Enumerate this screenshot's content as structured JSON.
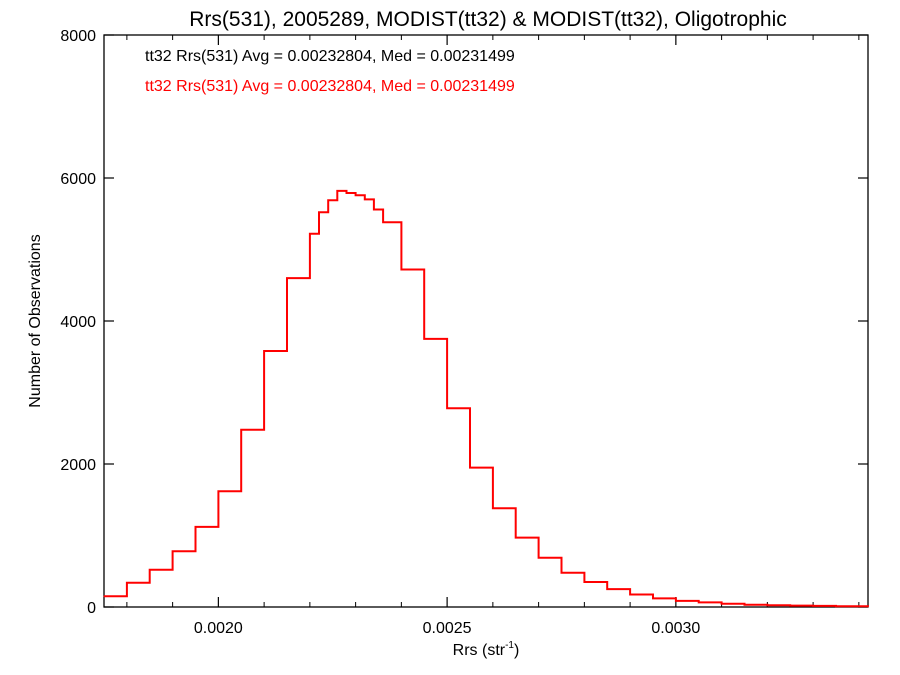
{
  "chart_data": {
    "type": "line",
    "step": true,
    "title": "Rrs(531), 2005289, MODIST(tt32) & MODIST(tt32), Oligotrophic",
    "xlabel": "Rrs (str",
    "xlabel_sup": "-1",
    "xlabel_close": ")",
    "ylabel": "Number of Observations",
    "xlim": [
      0.00175,
      0.00342
    ],
    "ylim": [
      0,
      8000
    ],
    "x_ticks": [
      {
        "value": 0.002,
        "label": "0.0020"
      },
      {
        "value": 0.0025,
        "label": "0.0025"
      },
      {
        "value": 0.003,
        "label": "0.0030"
      }
    ],
    "y_ticks": [
      {
        "value": 0,
        "label": "0"
      },
      {
        "value": 2000,
        "label": "2000"
      },
      {
        "value": 4000,
        "label": "4000"
      },
      {
        "value": 6000,
        "label": "6000"
      },
      {
        "value": 8000,
        "label": "8000"
      }
    ],
    "grid": false,
    "annotations": [
      {
        "text": "tt32 Rrs(531) Avg = 0.00232804, Med = 0.00231499",
        "color": "#000000"
      },
      {
        "text": "tt32 Rrs(531) Avg = 0.00232804, Med = 0.00231499",
        "color": "#ff0000"
      }
    ],
    "series": [
      {
        "color": "#ff0000",
        "x": [
          0.00175,
          0.0018,
          0.00185,
          0.0019,
          0.00195,
          0.002,
          0.00205,
          0.0021,
          0.00215,
          0.0022,
          0.00222,
          0.00224,
          0.00226,
          0.00228,
          0.0023,
          0.00232,
          0.00234,
          0.00236,
          0.0024,
          0.00245,
          0.0025,
          0.00255,
          0.0026,
          0.00265,
          0.0027,
          0.00275,
          0.0028,
          0.00285,
          0.0029,
          0.00295,
          0.003,
          0.00305,
          0.0031,
          0.00315,
          0.0032,
          0.00325,
          0.0033,
          0.00335,
          0.00342
        ],
        "y": [
          150,
          340,
          520,
          780,
          1120,
          1620,
          2480,
          3580,
          4600,
          5220,
          5520,
          5690,
          5820,
          5790,
          5760,
          5700,
          5560,
          5380,
          4720,
          3750,
          2780,
          1950,
          1380,
          970,
          690,
          480,
          350,
          250,
          175,
          120,
          85,
          65,
          45,
          32,
          25,
          20,
          15,
          10,
          5
        ]
      }
    ]
  }
}
